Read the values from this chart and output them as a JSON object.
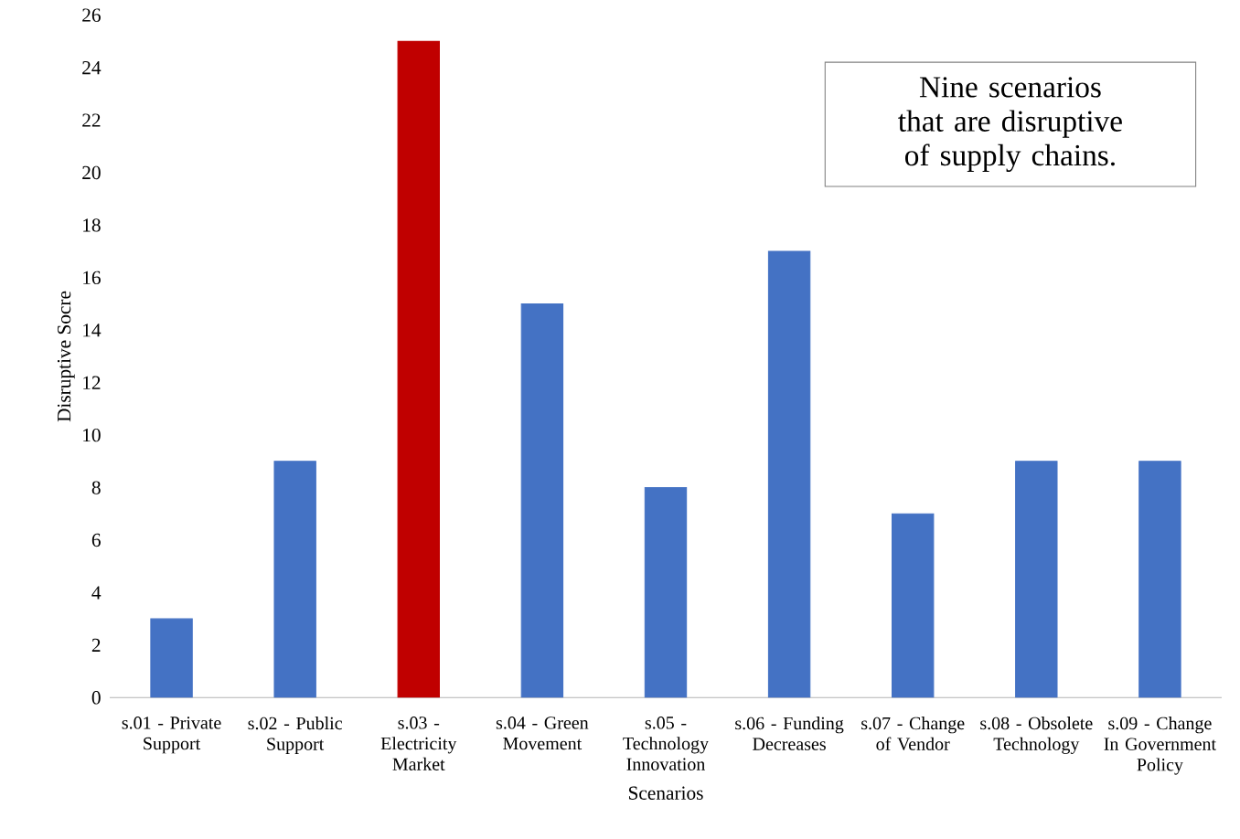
{
  "chart_data": {
    "type": "bar",
    "xlabel": "Scenarios",
    "ylabel": "Disruptive Socre",
    "categories": [
      "s.01 - Private Support",
      "s.02 - Public Support",
      "s.03 - Electricity Market",
      "s.04 - Green Movement",
      "s.05 - Technology Innovation",
      "s.06 - Funding Decreases",
      "s.07 - Change of Vendor",
      "s.08 - Obsolete Technology",
      "s.09 - Change In Government Policy"
    ],
    "values": [
      3,
      9,
      25,
      15,
      8,
      17,
      7,
      9,
      9
    ],
    "colors": [
      "#4472c4",
      "#4472c4",
      "#c00000",
      "#4472c4",
      "#4472c4",
      "#4472c4",
      "#4472c4",
      "#4472c4",
      "#4472c4"
    ],
    "ylim": [
      0,
      26
    ],
    "yticks": [
      0,
      2,
      4,
      6,
      8,
      10,
      12,
      14,
      16,
      18,
      20,
      22,
      24,
      26
    ],
    "grid": false,
    "annotations": [
      "Nine scenarios that are disruptive of supply chains."
    ]
  }
}
